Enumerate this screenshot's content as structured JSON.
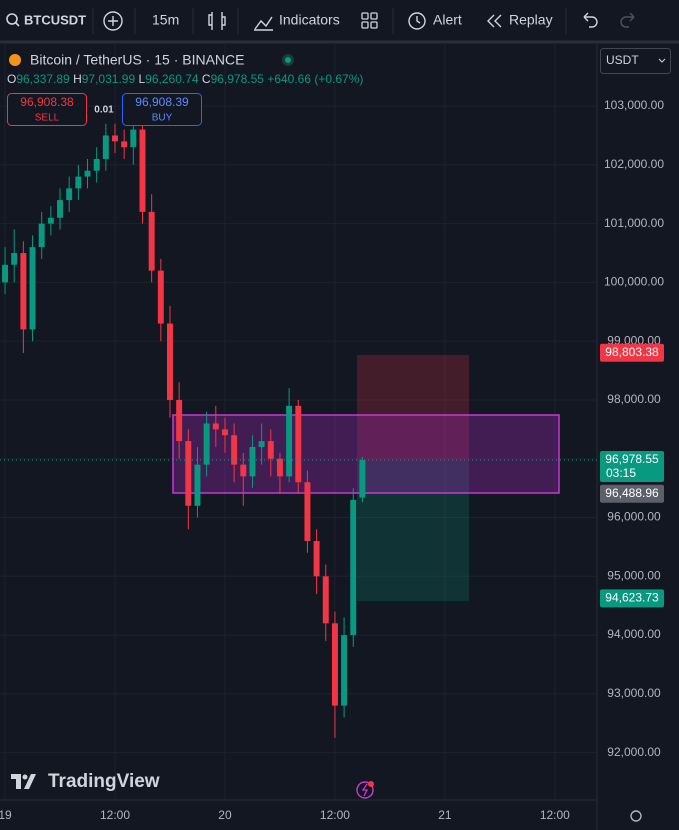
{
  "toolbar": {
    "symbol": "BTCUSDT",
    "interval": "15m",
    "indicators": "Indicators",
    "alert": "Alert",
    "replay": "Replay"
  },
  "legend": {
    "title": "Bitcoin / TetherUS · 15 · BINANCE",
    "o": "O",
    "open": "96,337.89",
    "h": "H",
    "high": "97,031.99",
    "l": "L",
    "low": "96,260.74",
    "c": "C",
    "close": "96,978.55",
    "change": "+640.66 (+0.67%)"
  },
  "trade": {
    "sell_price": "96,908.38",
    "sell": "SELL",
    "qty": "0.01",
    "buy_price": "96,908.39",
    "buy": "BUY"
  },
  "currency": "USDT",
  "logo": "TradingView",
  "chart_data": {
    "type": "candlestick",
    "x": [
      0,
      1,
      2,
      3,
      4,
      5,
      6,
      7,
      8,
      9,
      10,
      11,
      12,
      13,
      14,
      15,
      16,
      17,
      18,
      19,
      20,
      21,
      22,
      23,
      24,
      25,
      26,
      27,
      28,
      29,
      30,
      31,
      32,
      33,
      34,
      35,
      36,
      37,
      38,
      39
    ],
    "open": [
      100000,
      100300,
      100500,
      99200,
      100600,
      101000,
      101100,
      101400,
      101600,
      101800,
      101900,
      102100,
      102500,
      102400,
      102300,
      102600,
      101200,
      100200,
      99300,
      98000,
      97300,
      96200,
      96900,
      97600,
      97500,
      97400,
      96900,
      96700,
      97200,
      97300,
      97000,
      96700,
      97900,
      96600,
      95600,
      95000,
      94200,
      92800,
      94000,
      96337.89
    ],
    "high": [
      100600,
      100900,
      100700,
      100800,
      101200,
      101300,
      101600,
      101800,
      102000,
      102100,
      102300,
      102700,
      102700,
      102600,
      102800,
      102700,
      101500,
      100400,
      99600,
      98300,
      97500,
      97200,
      97800,
      97900,
      97700,
      97600,
      97100,
      97400,
      97600,
      97500,
      97100,
      98200,
      98000,
      96800,
      95800,
      95200,
      94400,
      94300,
      96500,
      97031.99
    ],
    "low": [
      99800,
      100000,
      98800,
      99000,
      100400,
      100800,
      100900,
      101200,
      101400,
      101600,
      101700,
      101900,
      102200,
      102100,
      102000,
      101000,
      100000,
      99000,
      97700,
      97000,
      95800,
      96000,
      96700,
      97200,
      97100,
      96600,
      96200,
      96500,
      96900,
      96700,
      96400,
      96600,
      96400,
      95400,
      94700,
      93900,
      92250,
      92600,
      93800,
      96260.74
    ],
    "close": [
      100300,
      100500,
      99200,
      100600,
      101000,
      101100,
      101400,
      101600,
      101800,
      101900,
      102100,
      102500,
      102400,
      102300,
      102600,
      101200,
      100200,
      99300,
      98000,
      97300,
      96200,
      96900,
      97600,
      97500,
      97400,
      96900,
      96700,
      97200,
      97300,
      97000,
      96700,
      97900,
      96600,
      95600,
      95000,
      94200,
      92800,
      94000,
      96300,
      96978.55
    ],
    "up_color": "#089981",
    "down_color": "#f23645",
    "xlim": [
      -0.55,
      64.6
    ],
    "xticks": [
      {
        "value": 0,
        "label": "19"
      },
      {
        "value": 12,
        "label": "12:00"
      },
      {
        "value": 24,
        "label": "20"
      },
      {
        "value": 36,
        "label": "12:00"
      },
      {
        "value": 48,
        "label": "21"
      },
      {
        "value": 60,
        "label": "12:00"
      }
    ],
    "ylim": [
      91194,
      104056
    ],
    "yticks": [
      {
        "value": 103000,
        "label": "103,000.00"
      },
      {
        "value": 102000,
        "label": "102,000.00"
      },
      {
        "value": 101000,
        "label": "101,000.00"
      },
      {
        "value": 100000,
        "label": "100,000.00"
      },
      {
        "value": 99000,
        "label": "99,000.00"
      },
      {
        "value": 98000,
        "label": "98,000.00"
      },
      {
        "value": 97000,
        "label": "97,000.00"
      },
      {
        "value": 96000,
        "label": "96,000.00"
      },
      {
        "value": 95000,
        "label": "95,000.00"
      },
      {
        "value": 94000,
        "label": "94,000.00"
      },
      {
        "value": 93000,
        "label": "93,000.00"
      },
      {
        "value": 92000,
        "label": "92,000.00"
      }
    ],
    "grid": true,
    "price_tags": [
      {
        "value": 98803.38,
        "label": "98,803.38",
        "color": "#f23645"
      },
      {
        "value": 96978.55,
        "label": "96,978.55",
        "countdown": "03:15",
        "color": "#089981"
      },
      {
        "value": 96488.96,
        "label": "96,488.96",
        "color": "#5d606b"
      },
      {
        "value": 94623.73,
        "label": "94,623.73",
        "color": "#089981"
      }
    ]
  }
}
